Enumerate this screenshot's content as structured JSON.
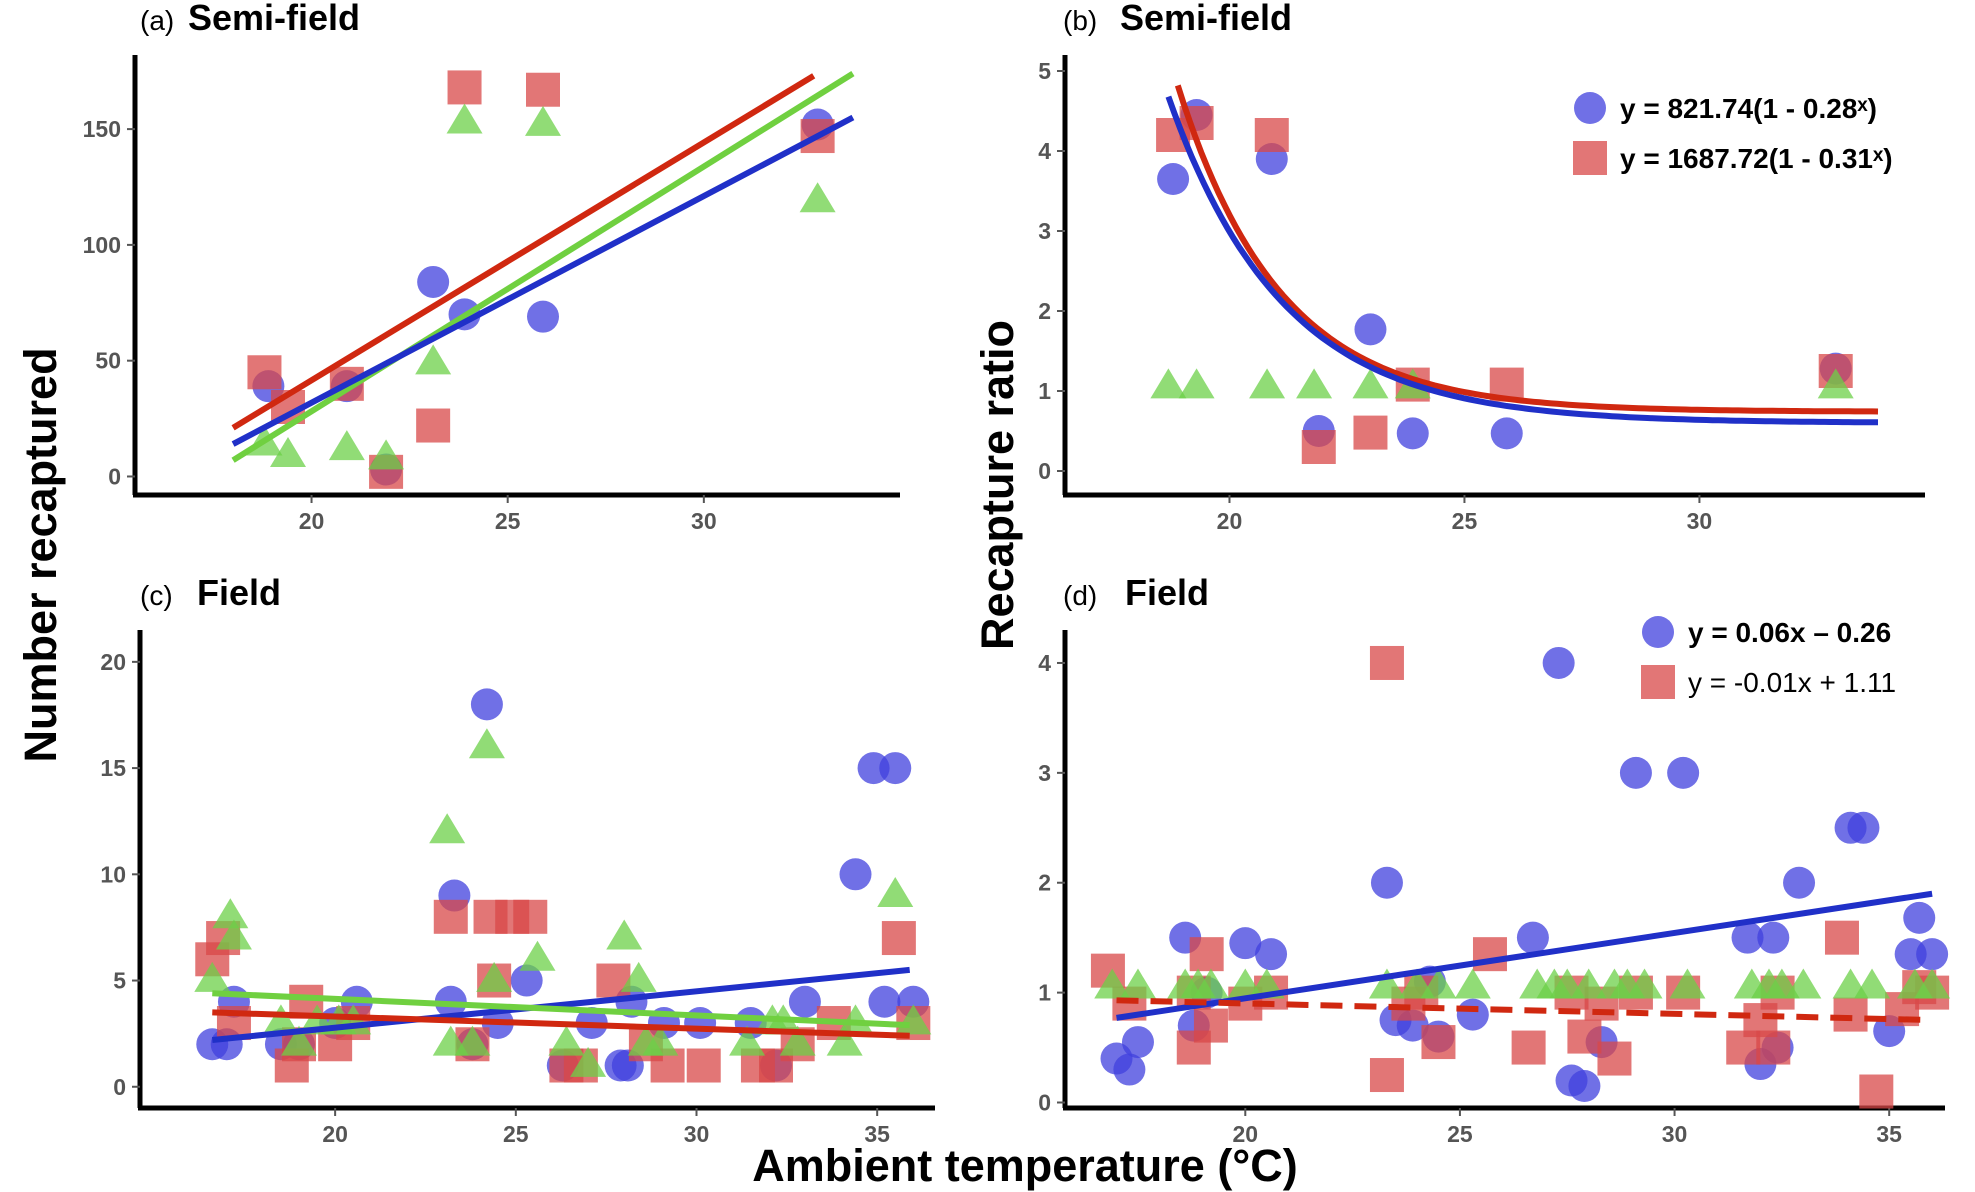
{
  "figure": {
    "y_axis_left": "Number recaptured",
    "y_axis_right": "Recapture ratio",
    "x_axis": "Ambient  temperature (°C)"
  },
  "colors": {
    "blue": "#4040DD",
    "red": "#D84848",
    "green": "#6CD048",
    "blue_line": "#2030C8",
    "red_line": "#D02810",
    "green_line": "#70D040"
  },
  "chart_data": [
    {
      "panel": "a",
      "tag": "(a)",
      "title": "Semi-field",
      "type": "scatter",
      "xlim": [
        15.5,
        35
      ],
      "ylim": [
        -8,
        182
      ],
      "xticks": [
        20,
        25,
        30
      ],
      "yticks": [
        0,
        50,
        100,
        150
      ],
      "series": [
        {
          "marker": "circle",
          "color": "blue",
          "points": [
            [
              18.9,
              39
            ],
            [
              20.9,
              39
            ],
            [
              21.9,
              3
            ],
            [
              23.1,
              84
            ],
            [
              23.9,
              70
            ],
            [
              25.9,
              69
            ],
            [
              32.9,
              152
            ]
          ]
        },
        {
          "marker": "square",
          "color": "red",
          "points": [
            [
              18.8,
              45
            ],
            [
              19.4,
              30
            ],
            [
              20.9,
              40
            ],
            [
              21.9,
              2
            ],
            [
              23.1,
              22
            ],
            [
              23.9,
              168
            ],
            [
              25.9,
              167
            ],
            [
              32.9,
              147
            ]
          ]
        },
        {
          "marker": "triangle",
          "color": "green",
          "points": [
            [
              18.8,
              14
            ],
            [
              19.4,
              9
            ],
            [
              20.9,
              12
            ],
            [
              21.9,
              8
            ],
            [
              23.1,
              49
            ],
            [
              23.9,
              153
            ],
            [
              25.9,
              152
            ],
            [
              32.9,
              119
            ]
          ]
        }
      ],
      "lines": [
        {
          "color": "red_line",
          "from": [
            18,
            21
          ],
          "to": [
            32.8,
            173
          ]
        },
        {
          "color": "green_line",
          "from": [
            18,
            7
          ],
          "to": [
            33.8,
            174
          ]
        },
        {
          "color": "blue_line",
          "from": [
            18,
            14
          ],
          "to": [
            33.8,
            155
          ]
        }
      ]
    },
    {
      "panel": "b",
      "tag": "(b)",
      "title": "Semi-field",
      "type": "scatter",
      "xlim": [
        16.5,
        34.8
      ],
      "ylim": [
        -0.3,
        5.2
      ],
      "xticks": [
        20,
        25,
        30
      ],
      "yticks": [
        0,
        1,
        2,
        3,
        4,
        5
      ],
      "series": [
        {
          "name": "y = 821.74(1 - 0.28ˣ)",
          "marker": "circle",
          "color": "blue",
          "points": [
            [
              18.8,
              3.65
            ],
            [
              19.3,
              4.45
            ],
            [
              20.9,
              3.9
            ],
            [
              21.9,
              0.5
            ],
            [
              23,
              1.77
            ],
            [
              23.9,
              0.47
            ],
            [
              25.9,
              0.47
            ],
            [
              32.9,
              1.28
            ]
          ]
        },
        {
          "name": "y = 1687.72(1 - 0.31ˣ)",
          "marker": "square",
          "color": "red",
          "points": [
            [
              18.8,
              4.2
            ],
            [
              19.3,
              4.35
            ],
            [
              20.9,
              4.2
            ],
            [
              21.9,
              0.3
            ],
            [
              23,
              0.48
            ],
            [
              23.9,
              1.08
            ],
            [
              25.9,
              1.08
            ],
            [
              32.9,
              1.25
            ]
          ]
        },
        {
          "marker": "triangle",
          "color": "green",
          "points": [
            [
              18.7,
              1.05
            ],
            [
              19.3,
              1.05
            ],
            [
              20.8,
              1.05
            ],
            [
              21.8,
              1.05
            ],
            [
              23,
              1.05
            ],
            [
              23.9,
              1.05
            ],
            [
              32.9,
              1.05
            ]
          ]
        }
      ],
      "curves": [
        {
          "color": "red_line",
          "a": 0.74,
          "b": 4.08,
          "k": 0.46,
          "x0": 18.9,
          "x1": 33.8
        },
        {
          "color": "blue_line",
          "a": 0.6,
          "b": 4.08,
          "k": 0.41,
          "x0": 18.7,
          "x1": 33.8
        }
      ],
      "legend_position": "top-right"
    },
    {
      "panel": "c",
      "tag": "(c)",
      "title": "Field",
      "type": "scatter",
      "xlim": [
        14.6,
        36.6
      ],
      "ylim": [
        -1,
        21.5
      ],
      "xticks": [
        20,
        25,
        30,
        35
      ],
      "yticks": [
        0,
        5,
        10,
        15,
        20
      ],
      "series": [
        {
          "marker": "circle",
          "color": "blue",
          "points": [
            [
              16.6,
              2
            ],
            [
              17,
              2
            ],
            [
              17.2,
              4
            ],
            [
              18.5,
              2
            ],
            [
              19,
              2
            ],
            [
              20,
              3
            ],
            [
              20.6,
              4
            ],
            [
              23.2,
              4
            ],
            [
              23.3,
              9
            ],
            [
              23.8,
              2
            ],
            [
              24.2,
              18
            ],
            [
              24.5,
              3
            ],
            [
              25.3,
              5
            ],
            [
              26.3,
              1
            ],
            [
              27.1,
              3
            ],
            [
              27.9,
              1
            ],
            [
              28.1,
              1
            ],
            [
              28.2,
              4
            ],
            [
              29.1,
              3
            ],
            [
              30.1,
              3
            ],
            [
              31.5,
              3
            ],
            [
              32.2,
              1
            ],
            [
              33,
              4
            ],
            [
              34.4,
              10
            ],
            [
              34.9,
              15
            ],
            [
              35.2,
              4
            ],
            [
              35.5,
              15
            ],
            [
              36,
              4
            ]
          ]
        },
        {
          "marker": "square",
          "color": "red",
          "points": [
            [
              16.6,
              6
            ],
            [
              16.9,
              7
            ],
            [
              17.2,
              3
            ],
            [
              18.8,
              1
            ],
            [
              19,
              2
            ],
            [
              19.2,
              4
            ],
            [
              20,
              2
            ],
            [
              20.5,
              3
            ],
            [
              23.2,
              8
            ],
            [
              23.8,
              2
            ],
            [
              24.3,
              8
            ],
            [
              24.4,
              5
            ],
            [
              24.9,
              8
            ],
            [
              25.4,
              8
            ],
            [
              26.4,
              1
            ],
            [
              26.8,
              1
            ],
            [
              27.7,
              5
            ],
            [
              28.6,
              2
            ],
            [
              29.2,
              1
            ],
            [
              30.2,
              1
            ],
            [
              31.7,
              1
            ],
            [
              32.2,
              1
            ],
            [
              32.8,
              2
            ],
            [
              33.8,
              3
            ],
            [
              35.6,
              7
            ],
            [
              36,
              3
            ]
          ]
        },
        {
          "marker": "triangle",
          "color": "green",
          "points": [
            [
              16.6,
              5
            ],
            [
              17.1,
              8
            ],
            [
              17.2,
              7
            ],
            [
              18.5,
              3
            ],
            [
              19,
              2
            ],
            [
              19.5,
              3
            ],
            [
              20.1,
              3
            ],
            [
              20.5,
              3
            ],
            [
              23.1,
              12
            ],
            [
              23.2,
              2
            ],
            [
              23.8,
              2
            ],
            [
              24.2,
              16
            ],
            [
              24.4,
              5
            ],
            [
              25.6,
              6
            ],
            [
              26.4,
              2
            ],
            [
              27,
              1
            ],
            [
              28,
              7
            ],
            [
              28.4,
              5
            ],
            [
              28.6,
              2
            ],
            [
              29,
              2
            ],
            [
              31.4,
              2
            ],
            [
              32.1,
              3
            ],
            [
              32.4,
              3
            ],
            [
              32.8,
              2
            ],
            [
              34.1,
              2
            ],
            [
              34.4,
              3
            ],
            [
              35.5,
              9
            ],
            [
              36,
              3
            ]
          ]
        }
      ],
      "lines": [
        {
          "color": "blue_line",
          "from": [
            16.6,
            2.2
          ],
          "to": [
            35.9,
            5.5
          ]
        },
        {
          "color": "green_line",
          "from": [
            16.6,
            4.4
          ],
          "to": [
            35.9,
            2.9
          ]
        },
        {
          "color": "red_line",
          "from": [
            16.6,
            3.5
          ],
          "to": [
            35.9,
            2.4
          ]
        }
      ]
    },
    {
      "panel": "d",
      "tag": "(d)",
      "title": "Field",
      "type": "scatter",
      "xlim": [
        15.8,
        36.3
      ],
      "ylim": [
        -0.05,
        4.3
      ],
      "xticks": [
        20,
        25,
        30,
        35
      ],
      "yticks": [
        0,
        1,
        2,
        3,
        4
      ],
      "series": [
        {
          "name": "y = 0.06x – 0.26",
          "marker": "circle",
          "color": "blue",
          "points": [
            [
              17,
              0.4
            ],
            [
              17.3,
              0.3
            ],
            [
              17.5,
              0.55
            ],
            [
              18.6,
              1.5
            ],
            [
              18.8,
              0.7
            ],
            [
              19.1,
              1
            ],
            [
              20,
              1.45
            ],
            [
              20.6,
              1.35
            ],
            [
              23.3,
              2
            ],
            [
              23.5,
              0.75
            ],
            [
              23.9,
              0.7
            ],
            [
              24.3,
              1.1
            ],
            [
              24.5,
              0.6
            ],
            [
              25.3,
              0.8
            ],
            [
              26.7,
              1.5
            ],
            [
              27.3,
              4
            ],
            [
              27.6,
              0.2
            ],
            [
              27.9,
              0.15
            ],
            [
              28.3,
              0.55
            ],
            [
              29.1,
              3
            ],
            [
              30.2,
              3
            ],
            [
              31.7,
              1.5
            ],
            [
              32,
              0.35
            ],
            [
              32.3,
              1.5
            ],
            [
              32.4,
              0.5
            ],
            [
              32.9,
              2
            ],
            [
              34.1,
              2.5
            ],
            [
              34.4,
              2.5
            ],
            [
              35,
              0.65
            ],
            [
              35.5,
              1.35
            ],
            [
              35.7,
              1.68
            ],
            [
              36,
              1.35
            ]
          ]
        },
        {
          "name": "y = -0.01x + 1.11",
          "marker": "square",
          "color": "red",
          "points": [
            [
              16.8,
              1.2
            ],
            [
              17.3,
              0.9
            ],
            [
              18.8,
              1
            ],
            [
              18.8,
              0.5
            ],
            [
              19.1,
              1.35
            ],
            [
              19.2,
              0.7
            ],
            [
              20,
              0.9
            ],
            [
              20.6,
              1
            ],
            [
              23.3,
              4
            ],
            [
              23.3,
              0.25
            ],
            [
              23.8,
              0.9
            ],
            [
              24.1,
              1
            ],
            [
              24.5,
              0.55
            ],
            [
              25.7,
              1.35
            ],
            [
              26.6,
              0.5
            ],
            [
              27.6,
              1
            ],
            [
              27.9,
              0.6
            ],
            [
              28.3,
              0.9
            ],
            [
              28.6,
              0.4
            ],
            [
              29.1,
              1
            ],
            [
              30.2,
              1
            ],
            [
              31.6,
              0.5
            ],
            [
              32,
              0.75
            ],
            [
              32.3,
              0.5
            ],
            [
              32.4,
              1
            ],
            [
              33.9,
              1.5
            ],
            [
              34.1,
              0.8
            ],
            [
              34.7,
              0.1
            ],
            [
              35.3,
              0.85
            ],
            [
              35.7,
              1.05
            ],
            [
              36,
              1
            ]
          ]
        },
        {
          "marker": "triangle",
          "color": "green",
          "points": [
            [
              16.9,
              1.05
            ],
            [
              17.5,
              1.05
            ],
            [
              18.6,
              1.05
            ],
            [
              18.9,
              1.05
            ],
            [
              19.2,
              1.05
            ],
            [
              20,
              1.05
            ],
            [
              20.5,
              1.05
            ],
            [
              23.3,
              1.05
            ],
            [
              24,
              1.05
            ],
            [
              24.5,
              1.05
            ],
            [
              25.3,
              1.05
            ],
            [
              26.8,
              1.05
            ],
            [
              27.2,
              1.05
            ],
            [
              27.5,
              1.05
            ],
            [
              28,
              1.05
            ],
            [
              28.6,
              1.05
            ],
            [
              28.9,
              1.05
            ],
            [
              29.3,
              1.05
            ],
            [
              30.3,
              1.05
            ],
            [
              31.8,
              1.05
            ],
            [
              32.2,
              1.05
            ],
            [
              32.5,
              1.05
            ],
            [
              33,
              1.05
            ],
            [
              34.1,
              1.05
            ],
            [
              34.6,
              1.05
            ],
            [
              35.6,
              1.05
            ],
            [
              36,
              1.05
            ]
          ]
        }
      ],
      "lines": [
        {
          "color": "blue_line",
          "from": [
            17,
            0.77
          ],
          "to": [
            36,
            1.9
          ],
          "dashed": false
        },
        {
          "color": "red_line",
          "from": [
            17,
            0.93
          ],
          "to": [
            36,
            0.75
          ],
          "dashed": true
        }
      ],
      "legend_position": "top-right"
    }
  ]
}
